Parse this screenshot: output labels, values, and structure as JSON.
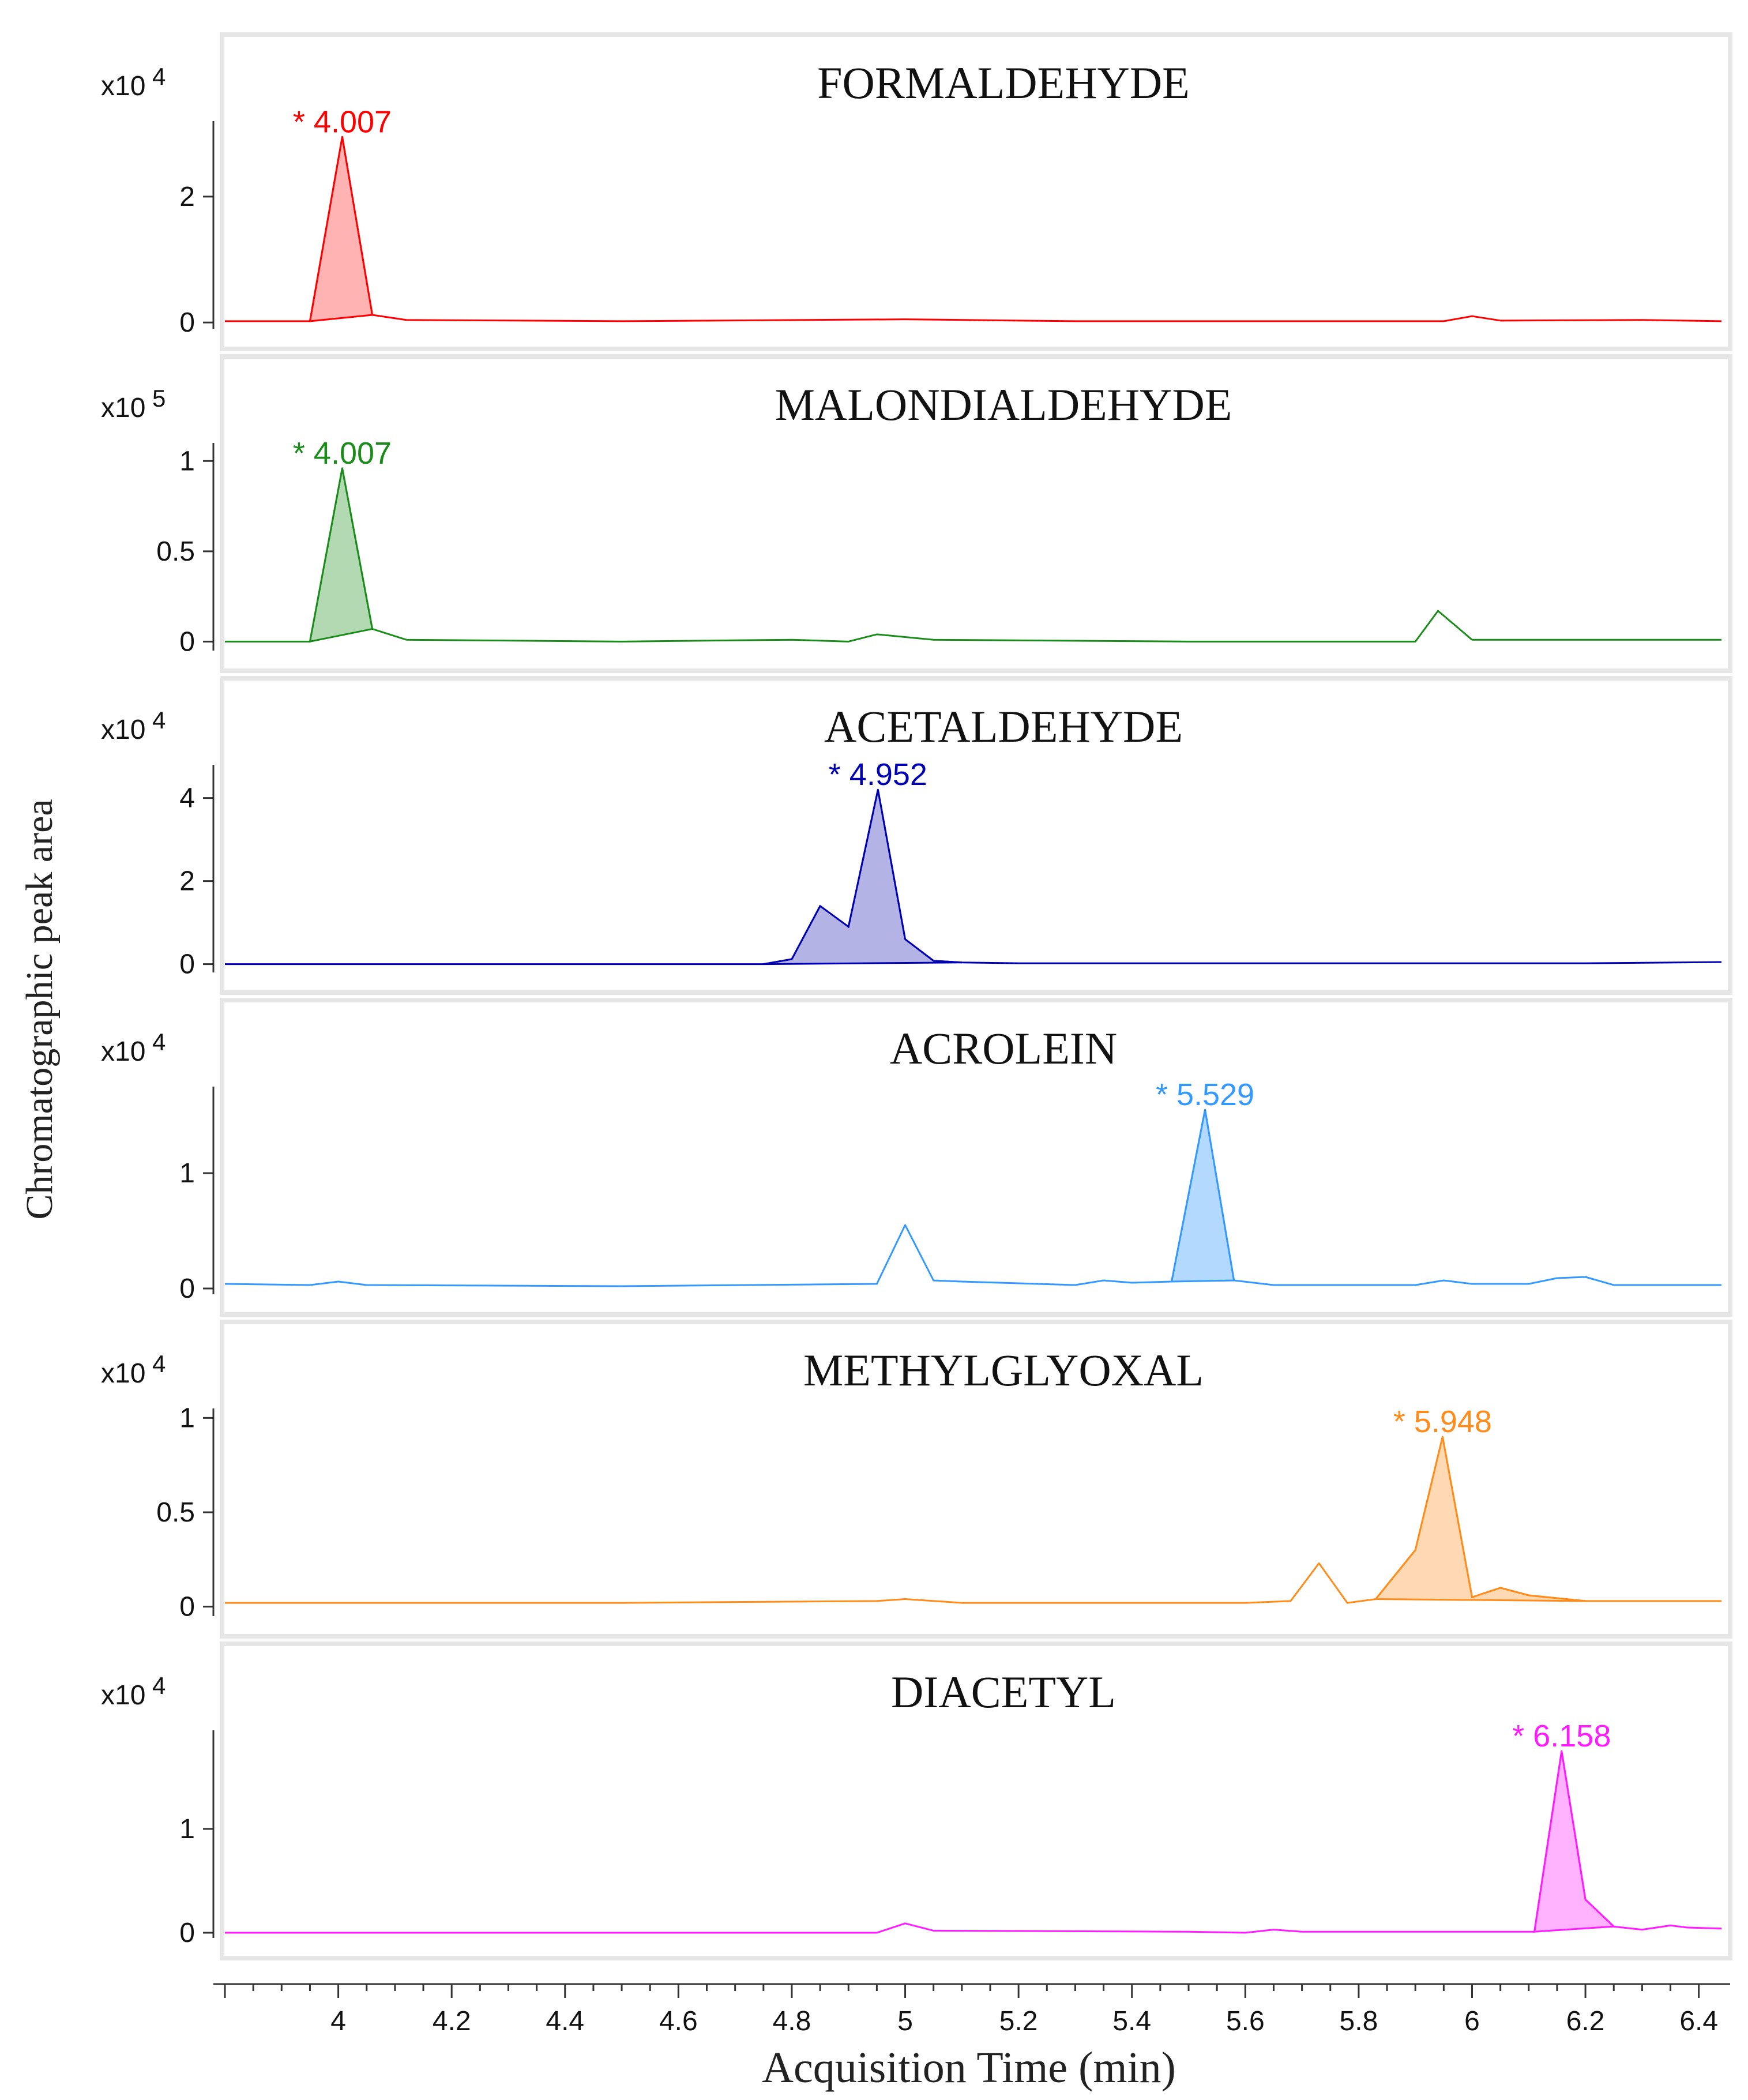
{
  "chart_data": {
    "type": "line",
    "title": "",
    "xlabel": "Acquisition Time (min)",
    "ylabel": "Chromatographic peak area",
    "xlim": [
      3.8,
      6.44
    ],
    "x_ticks": [
      "4",
      "4.2",
      "4.4",
      "4.6",
      "4.8",
      "5",
      "5.2",
      "5.4",
      "5.6",
      "5.8",
      "6",
      "6.2",
      "6.4"
    ],
    "x_tick_values": [
      4,
      4.2,
      4.4,
      4.6,
      4.8,
      5,
      5.2,
      5.4,
      5.6,
      5.8,
      6,
      6.2,
      6.4
    ],
    "panels": [
      {
        "name": "FORMALDEHYDE",
        "color": "#ff0000",
        "fill": "#ffb3b3",
        "exponent_label": "x10 4",
        "exponent_base": "x10",
        "exponent_power": "4",
        "ylim": [
          -0.1,
          3.2
        ],
        "y_ticks": [
          "0",
          "2"
        ],
        "y_tick_values": [
          0,
          2
        ],
        "peak_label": "* 4.007",
        "peak_x": 4.007,
        "peak_y": 2.95,
        "peak_region": [
          3.95,
          4.06
        ],
        "x": [
          3.8,
          3.95,
          4.007,
          4.06,
          4.12,
          4.5,
          5.0,
          5.3,
          5.9,
          5.95,
          6.0,
          6.05,
          6.3,
          6.44
        ],
        "y": [
          0.02,
          0.02,
          2.95,
          0.12,
          0.04,
          0.02,
          0.05,
          0.02,
          0.02,
          0.02,
          0.1,
          0.03,
          0.04,
          0.02
        ]
      },
      {
        "name": "MALONDIALDEHYDE",
        "color": "#1a8c1a",
        "fill": "#b3d9b3",
        "exponent_label": "x10 5",
        "exponent_base": "x10",
        "exponent_power": "5",
        "ylim": [
          -0.05,
          1.1
        ],
        "y_ticks": [
          "0",
          "0.5",
          "1"
        ],
        "y_tick_values": [
          0,
          0.5,
          1
        ],
        "peak_label": "* 4.007",
        "peak_x": 4.007,
        "peak_y": 0.96,
        "peak_region": [
          3.95,
          4.06
        ],
        "x": [
          3.8,
          3.95,
          4.007,
          4.06,
          4.12,
          4.5,
          4.8,
          4.9,
          4.95,
          5.05,
          5.5,
          5.9,
          5.94,
          6.0,
          6.44
        ],
        "y": [
          0.0,
          0.0,
          0.96,
          0.07,
          0.01,
          0.0,
          0.01,
          0.0,
          0.04,
          0.01,
          0.0,
          0.0,
          0.17,
          0.01,
          0.01
        ]
      },
      {
        "name": "ACETALDEHYDE",
        "color": "#0000b3",
        "fill": "#b3b3e6",
        "exponent_label": "x10 4",
        "exponent_base": "x10",
        "exponent_power": "4",
        "ylim": [
          -0.2,
          4.8
        ],
        "y_ticks": [
          "0",
          "2",
          "4"
        ],
        "y_tick_values": [
          0,
          2,
          4
        ],
        "peak_label": "* 4.952",
        "peak_x": 4.952,
        "peak_y": 4.2,
        "peak_region": [
          4.75,
          5.1
        ],
        "x": [
          3.8,
          4.5,
          4.75,
          4.8,
          4.85,
          4.9,
          4.952,
          5.0,
          5.05,
          5.1,
          5.2,
          5.9,
          6.2,
          6.44
        ],
        "y": [
          0.0,
          0.0,
          0.0,
          0.12,
          1.4,
          0.9,
          4.2,
          0.6,
          0.08,
          0.04,
          0.02,
          0.02,
          0.02,
          0.05
        ]
      },
      {
        "name": "ACROLEIN",
        "color": "#3399ff",
        "fill": "#b3d9ff",
        "exponent_label": "x10 4",
        "exponent_base": "x10",
        "exponent_power": "4",
        "ylim": [
          -0.05,
          1.75
        ],
        "y_ticks": [
          "0",
          "1"
        ],
        "y_tick_values": [
          0,
          1
        ],
        "peak_label": "* 5.529",
        "peak_x": 5.529,
        "peak_y": 1.55,
        "peak_region": [
          5.47,
          5.58
        ],
        "x": [
          3.8,
          3.95,
          4.0,
          4.05,
          4.5,
          4.95,
          5.0,
          5.05,
          5.1,
          5.3,
          5.35,
          5.4,
          5.47,
          5.529,
          5.58,
          5.65,
          5.9,
          5.95,
          6.0,
          6.1,
          6.15,
          6.2,
          6.25,
          6.44
        ],
        "y": [
          0.04,
          0.03,
          0.06,
          0.03,
          0.02,
          0.04,
          0.55,
          0.07,
          0.06,
          0.03,
          0.07,
          0.05,
          0.06,
          1.55,
          0.07,
          0.03,
          0.03,
          0.07,
          0.04,
          0.04,
          0.09,
          0.1,
          0.03,
          0.03
        ]
      },
      {
        "name": "METHYLGLYOXAL",
        "color": "#ff8c1a",
        "fill": "#ffd9b3",
        "exponent_label": "x10 4",
        "exponent_base": "x10",
        "exponent_power": "4",
        "ylim": [
          -0.05,
          1.05
        ],
        "y_ticks": [
          "0",
          "0.5",
          "1"
        ],
        "y_tick_values": [
          0,
          0.5,
          1
        ],
        "peak_label": "* 5.948",
        "peak_x": 5.948,
        "peak_y": 0.9,
        "peak_region": [
          5.83,
          6.2
        ],
        "x": [
          3.8,
          4.5,
          4.95,
          5.0,
          5.1,
          5.4,
          5.6,
          5.68,
          5.73,
          5.78,
          5.83,
          5.9,
          5.948,
          6.0,
          6.05,
          6.1,
          6.2,
          6.44
        ],
        "y": [
          0.02,
          0.02,
          0.03,
          0.04,
          0.02,
          0.02,
          0.02,
          0.03,
          0.23,
          0.02,
          0.04,
          0.3,
          0.9,
          0.05,
          0.1,
          0.06,
          0.03,
          0.03
        ]
      },
      {
        "name": "DIACETYL",
        "color": "#ff1aff",
        "fill": "#ffb3ff",
        "exponent_label": "x10 4",
        "exponent_base": "x10",
        "exponent_power": "4",
        "ylim": [
          -0.05,
          1.95
        ],
        "y_ticks": [
          "0",
          "1"
        ],
        "y_tick_values": [
          0,
          1
        ],
        "peak_label": "* 6.158",
        "peak_x": 6.158,
        "peak_y": 1.75,
        "peak_region": [
          6.11,
          6.25
        ],
        "x": [
          3.8,
          4.5,
          4.95,
          5.0,
          5.05,
          5.5,
          5.6,
          5.65,
          5.7,
          6.0,
          6.11,
          6.158,
          6.2,
          6.25,
          6.3,
          6.35,
          6.38,
          6.44
        ],
        "y": [
          0.0,
          0.0,
          0.0,
          0.09,
          0.02,
          0.01,
          0.0,
          0.03,
          0.01,
          0.01,
          0.01,
          1.75,
          0.32,
          0.06,
          0.03,
          0.07,
          0.05,
          0.04
        ]
      }
    ]
  }
}
